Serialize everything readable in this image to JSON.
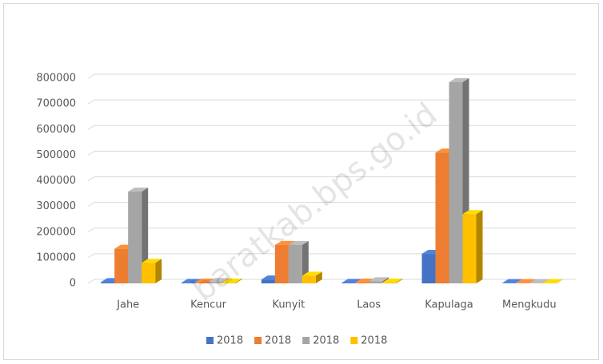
{
  "chart_data": {
    "type": "bar3d",
    "categories": [
      "Jahe",
      "Kencur",
      "Kunyit",
      "Laos",
      "Kapulaga",
      "Mengkudu"
    ],
    "series": [
      {
        "name": "2018",
        "color": "#4472c4",
        "values": [
          5000,
          2000,
          15000,
          2000,
          115000,
          1000
        ]
      },
      {
        "name": "2018",
        "color": "#ed7d31",
        "values": [
          135000,
          3000,
          150000,
          3000,
          510000,
          1000
        ]
      },
      {
        "name": "2018",
        "color": "#a5a5a5",
        "values": [
          358000,
          5000,
          150000,
          8000,
          785000,
          1000
        ]
      },
      {
        "name": "2018",
        "color": "#ffc000",
        "values": [
          80000,
          3000,
          30000,
          3000,
          270000,
          1000
        ]
      }
    ],
    "ylim": [
      0,
      800000
    ],
    "yticks": [
      0,
      100000,
      200000,
      300000,
      400000,
      500000,
      600000,
      700000,
      800000
    ],
    "grid": true,
    "watermark": "baratkab.bps.go.id"
  }
}
